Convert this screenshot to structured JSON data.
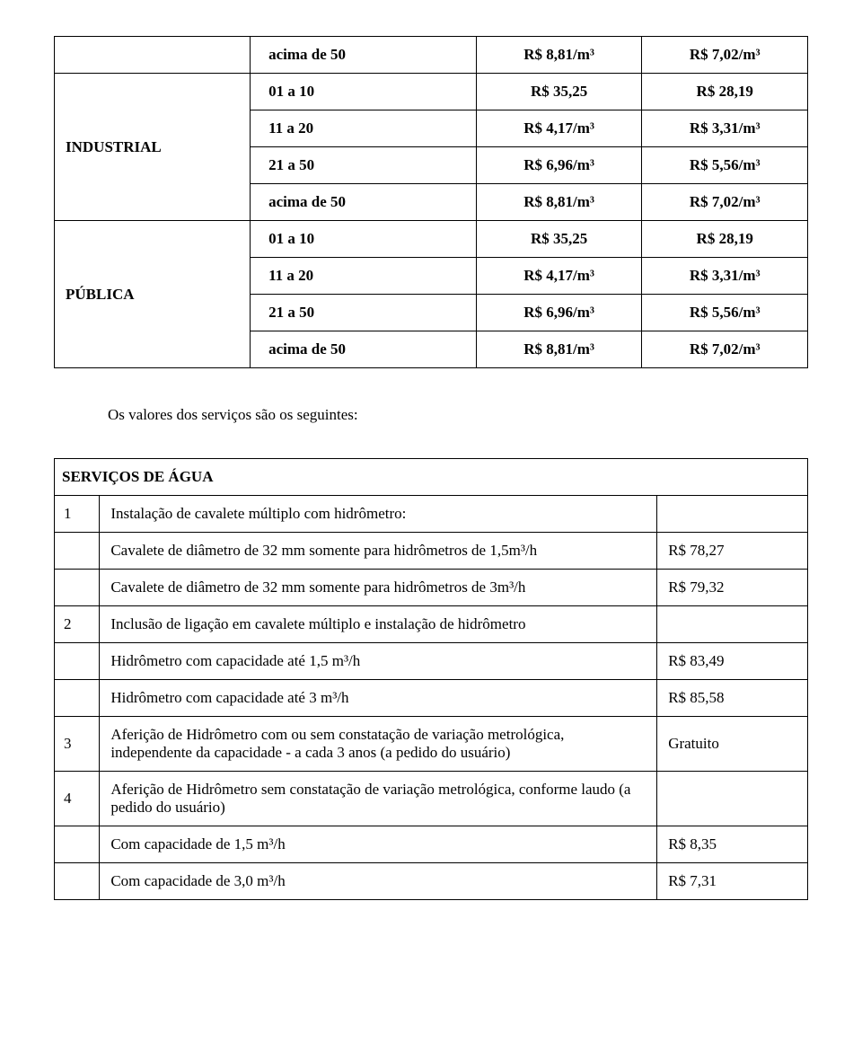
{
  "table1": {
    "rows": [
      {
        "cat": "",
        "catRowspan": 1,
        "range": "acima de 50",
        "v1": "R$ 8,81/m³",
        "v2": "R$ 7,02/m³"
      },
      {
        "cat": "INDUSTRIAL",
        "catRowspan": 4,
        "range": "01 a 10",
        "v1": "R$ 35,25",
        "v2": "R$ 28,19"
      },
      {
        "range": "11 a 20",
        "v1": "R$ 4,17/m³",
        "v2": "R$ 3,31/m³"
      },
      {
        "range": "21 a 50",
        "v1": "R$ 6,96/m³",
        "v2": "R$ 5,56/m³"
      },
      {
        "range": "acima de 50",
        "v1": "R$ 8,81/m³",
        "v2": "R$ 7,02/m³"
      },
      {
        "cat": "PÚBLICA",
        "catRowspan": 4,
        "range": "01 a 10",
        "v1": "R$ 35,25",
        "v2": "R$ 28,19"
      },
      {
        "range": "11 a 20",
        "v1": "R$ 4,17/m³",
        "v2": "R$ 3,31/m³"
      },
      {
        "range": "21 a 50",
        "v1": "R$ 6,96/m³",
        "v2": "R$ 5,56/m³"
      },
      {
        "range": "acima de 50",
        "v1": "R$ 8,81/m³",
        "v2": "R$ 7,02/m³"
      }
    ]
  },
  "intro": "Os valores dos serviços são os seguintes:",
  "section": "SERVIÇOS DE ÁGUA",
  "table2": {
    "rows": [
      {
        "num": "1",
        "desc": "Instalação de cavalete múltiplo com hidrômetro:",
        "val": ""
      },
      {
        "num": "",
        "desc": "Cavalete de diâmetro de 32 mm somente para hidrômetros de 1,5m³/h",
        "val": "R$ 78,27"
      },
      {
        "num": "",
        "desc": "Cavalete de diâmetro de 32 mm somente para hidrômetros de 3m³/h",
        "val": "R$ 79,32"
      },
      {
        "num": "2",
        "desc": "Inclusão de ligação em cavalete múltiplo e instalação de hidrômetro",
        "val": ""
      },
      {
        "num": "",
        "desc": "Hidrômetro com capacidade até 1,5 m³/h",
        "val": "R$ 83,49"
      },
      {
        "num": "",
        "desc": "Hidrômetro com capacidade até 3 m³/h",
        "val": "R$ 85,58"
      },
      {
        "num": "3",
        "desc": "Aferição de Hidrômetro com ou sem constatação de variação metrológica, independente da capacidade - a cada 3 anos (a pedido do usuário)",
        "val": "Gratuito"
      },
      {
        "num": "4",
        "desc": "Aferição de Hidrômetro sem constatação de variação metrológica, conforme laudo (a pedido do usuário)",
        "val": ""
      },
      {
        "num": "",
        "desc": "Com capacidade de 1,5 m³/h",
        "val": "R$ 8,35"
      },
      {
        "num": "",
        "desc": "Com capacidade de 3,0 m³/h",
        "val": "R$ 7,31"
      }
    ]
  }
}
